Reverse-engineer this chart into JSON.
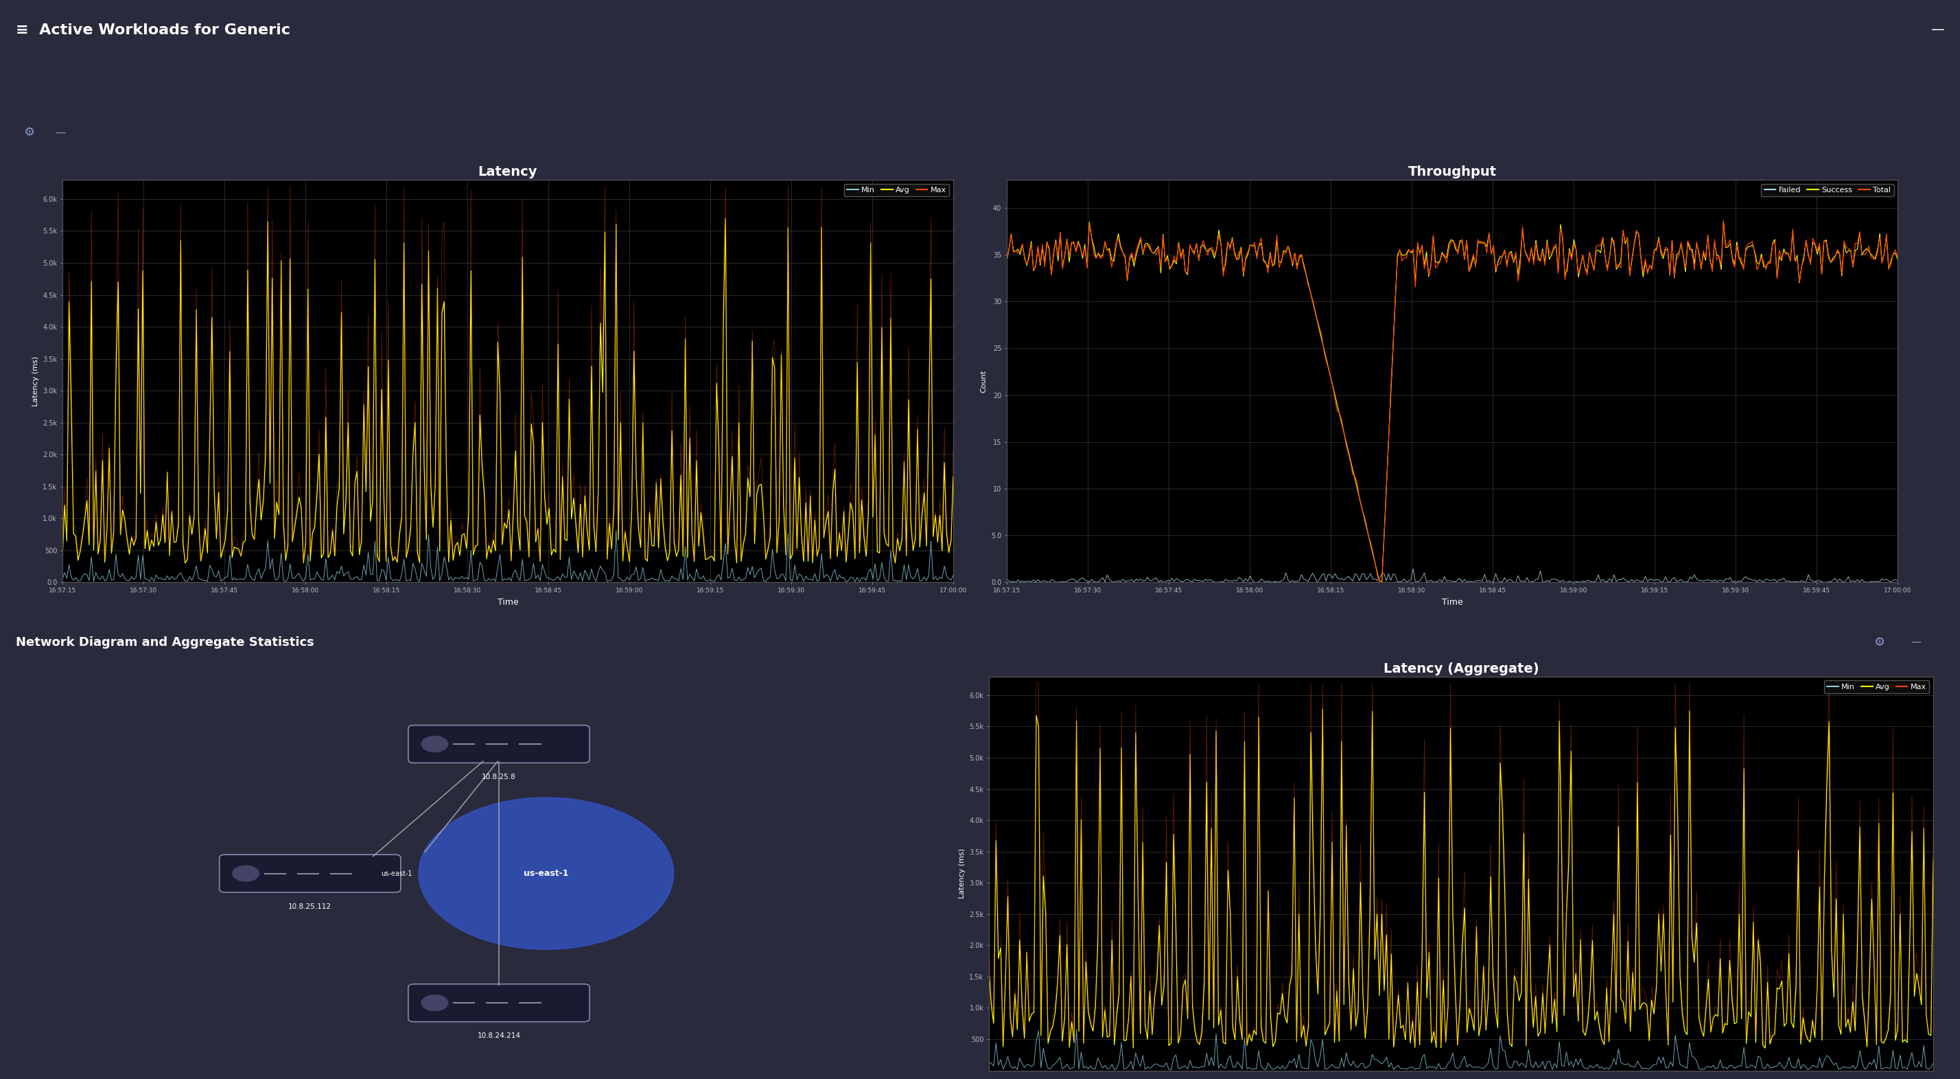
{
  "title_bar": "Active Workloads for Generic",
  "title_bar_color": "#1c1c9c",
  "bg_outer": "#2a2a3d",
  "bg_inner": "#363648",
  "blue_toolbar_color": "#2222b0",
  "chart_bg": "#000000",
  "chart_border": "#3a3a5a",
  "latency_title": "Latency",
  "latency_ylabel": "Latency (ms)",
  "latency_xlabel": "Time",
  "latency_yticks": [
    "0.0",
    "500",
    "1.0k",
    "1.5k",
    "2.0k",
    "2.5k",
    "3.0k",
    "3.5k",
    "4.0k",
    "4.5k",
    "5.0k",
    "5.5k",
    "6.0k"
  ],
  "latency_ytick_vals": [
    0,
    500,
    1000,
    1500,
    2000,
    2500,
    3000,
    3500,
    4000,
    4500,
    5000,
    5500,
    6000
  ],
  "latency_ylim": [
    0,
    6300
  ],
  "latency_xticks": [
    "16:57:15",
    "16:57:30",
    "16:57:45",
    "16:58:00",
    "16:58:15",
    "16:58:30",
    "16:58:45",
    "16:59:00",
    "16:59:15",
    "16:59:30",
    "16:59:45",
    "17:00:00"
  ],
  "throughput_title": "Throughput",
  "throughput_ylabel": "Count",
  "throughput_xlabel": "Time",
  "throughput_yticks": [
    "0.0",
    "5.0",
    "10",
    "15",
    "20",
    "25",
    "30",
    "35",
    "40"
  ],
  "throughput_ytick_vals": [
    0,
    5,
    10,
    15,
    20,
    25,
    30,
    35,
    40
  ],
  "throughput_ylim": [
    0,
    43
  ],
  "throughput_xticks": [
    "16:57:15",
    "16:57:30",
    "16:57:45",
    "16:58:00",
    "16:58:15",
    "16:58:30",
    "16:58:45",
    "16:59:00",
    "16:59:15",
    "16:59:30",
    "16:59:45",
    "17:00:00"
  ],
  "latency_agg_title": "Latency (Aggregate)",
  "latency_agg_ylabel": "Latency (ms)",
  "latency_agg_yticks": [
    "500",
    "1.0k",
    "1.5k",
    "2.0k",
    "2.5k",
    "3.0k",
    "3.5k",
    "4.0k",
    "4.5k",
    "5.0k",
    "5.5k",
    "6.0k"
  ],
  "latency_agg_ytick_vals": [
    500,
    1000,
    1500,
    2000,
    2500,
    3000,
    3500,
    4000,
    4500,
    5000,
    5500,
    6000
  ],
  "latency_agg_ylim": [
    0,
    6300
  ],
  "legend_min_color": "#88ccdd",
  "legend_avg_color": "#ffff00",
  "legend_max_color": "#ff4400",
  "legend_failed_color": "#aaddee",
  "legend_success_color": "#ffff00",
  "legend_total_color": "#ff4400",
  "network_title": "Network Diagram and Aggregate Statistics",
  "net_panel_bg": "#2a2a3d",
  "net_diagram_bg": "#1a1a2e",
  "node1_label": "10.8.25.8",
  "node2_label": "10.8.25.112",
  "node3_label": "10.8.24.214",
  "node_region": "us-east-1",
  "grid_color": "#3a3a3a",
  "tick_color": "#bbbbbb",
  "text_color": "#ffffff"
}
